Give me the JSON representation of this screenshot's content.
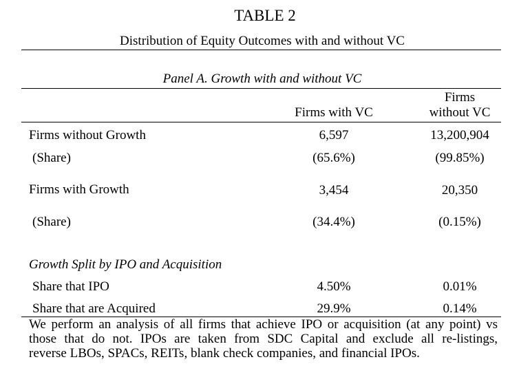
{
  "table": {
    "title": "TABLE 2",
    "subtitle": "Distribution of Equity Outcomes with and without VC",
    "panel_title": "Panel A. Growth with and without VC",
    "col1_header": "Firms with VC",
    "col2_header_line1": "Firms",
    "col2_header_line2": "without VC",
    "rows": [
      {
        "label": "Firms without Growth",
        "vc": "6,597",
        "no_vc": "13,200,904"
      },
      {
        "label": "(Share)",
        "vc": "(65.6%)",
        "no_vc": "(99.85%)"
      },
      {
        "label": "Firms with Growth",
        "vc": "3,454",
        "no_vc": "20,350"
      },
      {
        "label": "(Share)",
        "vc": "(34.4%)",
        "no_vc": "(0.15%)"
      }
    ],
    "split_heading": "Growth Split by IPO and Acquisition",
    "split_rows": [
      {
        "label": "Share that IPO",
        "vc": "4.50%",
        "no_vc": "0.01%"
      },
      {
        "label": "Share that are Acquired",
        "vc": "29.9%",
        "no_vc": "0.14%"
      }
    ],
    "note_lines": [
      "We perform an analysis of all firms that achieve IPO or acquisition (at any point) vs",
      "those that do not. IPOs are taken from SDC Capital and exclude all re-listings,",
      "reverse LBOs, SPACs, REITs, blank check companies, and financial IPOs."
    ]
  }
}
